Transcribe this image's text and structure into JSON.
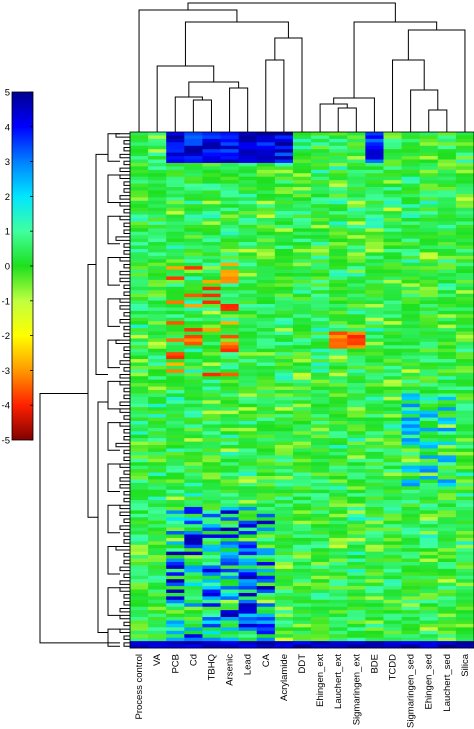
{
  "chart_data": {
    "type": "heatmap",
    "title": "",
    "xlabel": "",
    "ylabel": "",
    "columns": [
      "Process control",
      "VA",
      "PCB",
      "Cd",
      "TBHQ",
      "Arsenic",
      "Lead",
      "CA",
      "Acrylamide",
      "DDT",
      "Ehingen_ext",
      "Lauchert_ext",
      "Sigmaringen_ext",
      "BDE",
      "TCDD",
      "Sigmaringen_sed",
      "Ehingen_sed",
      "Lauchert_sed",
      "Silica"
    ],
    "colorbar": {
      "min": -5,
      "max": 5,
      "ticks": [
        "5",
        "4",
        "3",
        "2",
        "1",
        "0",
        "-1",
        "-2",
        "-3",
        "-4",
        "-5"
      ],
      "colors": [
        "#00008f",
        "#0000ff",
        "#0080ff",
        "#00e6ff",
        "#40ff9f",
        "#1ee01e",
        "#bfff40",
        "#ffff00",
        "#ff9900",
        "#ff2000",
        "#800000"
      ]
    },
    "row_count": 150,
    "column_dendrogram": true,
    "row_dendrogram": true
  }
}
